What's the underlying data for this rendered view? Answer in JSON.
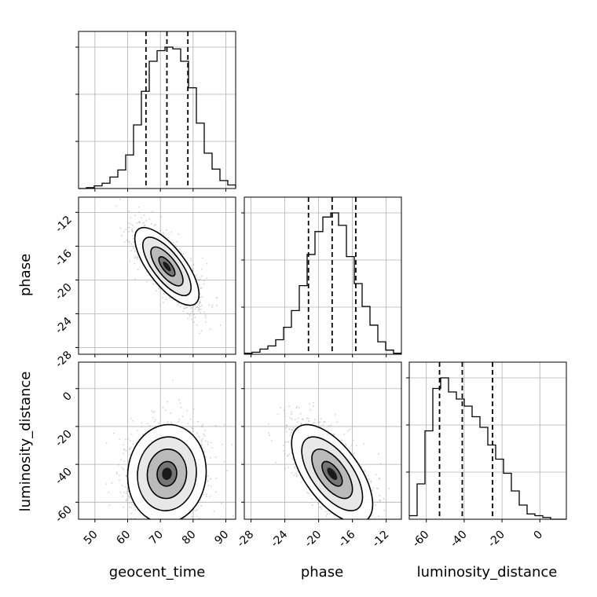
{
  "chart_data": {
    "type": "corner",
    "parameters": [
      "geocent_time",
      "phase",
      "luminosity_distance"
    ],
    "axis_labels": {
      "geocent_time": "geocent_time",
      "phase": "phase",
      "luminosity_distance": "luminosity_distance"
    },
    "ranges": {
      "geocent_time": [
        45,
        93
      ],
      "phase": [
        -28.8,
        -10.2
      ],
      "luminosity_distance": [
        -69,
        14
      ]
    },
    "ticks": {
      "geocent_time": [
        50,
        60,
        70,
        80,
        90
      ],
      "phase": [
        -28,
        -24,
        -20,
        -16,
        -12
      ],
      "luminosity_distance": [
        -60,
        -40,
        -20,
        0
      ]
    },
    "histograms": {
      "geocent_time": {
        "edges_start": 45,
        "bin_width": 2.4,
        "counts": [
          0,
          0.5,
          1.5,
          3,
          6.5,
          10.5,
          19,
          36,
          55,
          72,
          78,
          80,
          79,
          72,
          57,
          37,
          20,
          11,
          4.5,
          2,
          0.5
        ],
        "quantiles": [
          65.6,
          72.0,
          78.4
        ]
      },
      "phase": {
        "edges_start": -28.8,
        "bin_width": 0.93,
        "counts": [
          0.5,
          1,
          2.5,
          4,
          7,
          13,
          21,
          33,
          48,
          59,
          66,
          68,
          62,
          47,
          34,
          23,
          14,
          6,
          2,
          0.5
        ],
        "quantiles": [
          -21.2,
          -18.4,
          -15.6
        ]
      },
      "luminosity_distance": {
        "edges_start": -69,
        "bin_width": 4.15,
        "counts": [
          1,
          10,
          25,
          37,
          40,
          36,
          34,
          32,
          29,
          26,
          21,
          17,
          13,
          8,
          4,
          1.5,
          1,
          0.5,
          0,
          0
        ],
        "quantiles": [
          -53.0,
          -41.0,
          -25.0
        ]
      }
    },
    "correlations": {
      "phase|geocent_time": {
        "center": [
          72.0,
          -18.4
        ],
        "sigma": [
          4.9,
          2.3
        ],
        "rho": -0.72
      },
      "luminosity_distance|geocent_time": {
        "center": [
          72.0,
          -45.0
        ],
        "sigma": [
          6.0,
          13.0
        ],
        "rho": 0.05
      },
      "luminosity_distance|phase": {
        "center": [
          -18.4,
          -45.0
        ],
        "sigma": [
          2.4,
          13.0
        ],
        "rho": -0.62
      }
    },
    "contour_levels_sigma": [
      0.5,
      1.0,
      1.5,
      2.0
    ],
    "grid": true
  }
}
